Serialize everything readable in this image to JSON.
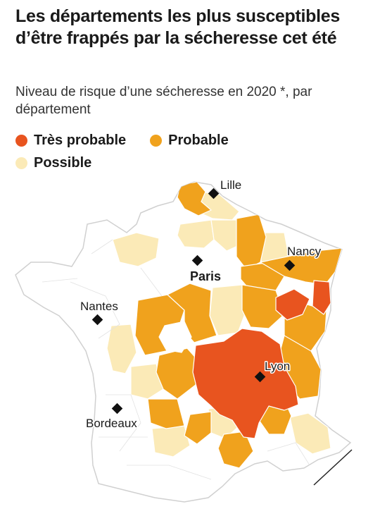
{
  "title": "Les départements les plus susceptibles d’être frappés par la sécheresse cet été",
  "subtitle": "Niveau de risque d’une sécheresse en 2020 *, par département",
  "legend": [
    {
      "label": "Très probable",
      "color": "#e8541f"
    },
    {
      "label": "Probable",
      "color": "#f0a21d"
    },
    {
      "label": "Possible",
      "color": "#fbeab7"
    }
  ],
  "colors": {
    "none": "#ffffff",
    "border": "#d4d4d4",
    "city_marker": "#111111"
  },
  "cities": {
    "lille": "Lille",
    "nancy": "Nancy",
    "paris": "Paris",
    "nantes": "Nantes",
    "lyon": "Lyon",
    "bordeaux": "Bordeaux"
  }
}
